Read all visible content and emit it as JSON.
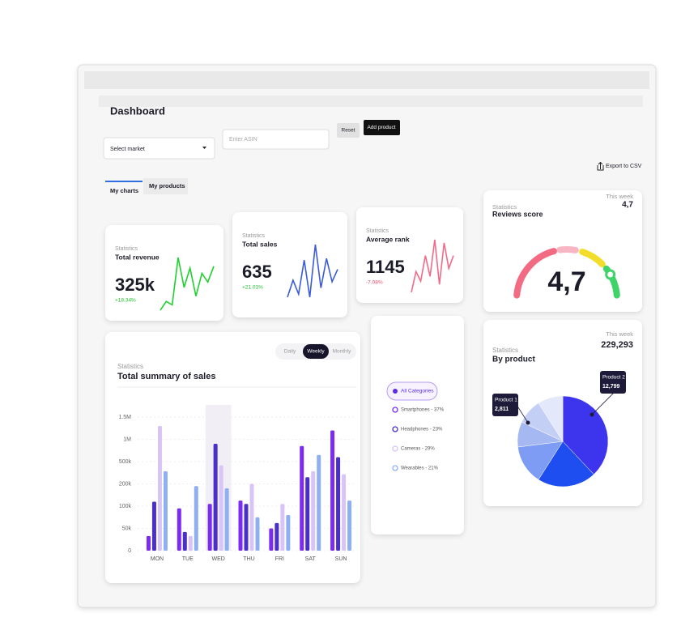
{
  "header": {
    "title": "Dashboard"
  },
  "controls": {
    "market_select": "Select market",
    "asin_placeholder": "Enter ASIN",
    "reset": "Reset",
    "add_product": "Add product",
    "export": "Export to CSV"
  },
  "tabs": [
    "My charts",
    "My products"
  ],
  "kpis": [
    {
      "label": "Statistics",
      "title": "Total revenue",
      "value": "325k",
      "change": "+18.34%",
      "change_color": "#19c22b",
      "color": "#1ed12e",
      "trend": [
        2,
        12,
        8,
        62,
        28,
        50,
        18,
        44,
        34,
        52
      ]
    },
    {
      "label": "Statistics",
      "title": "Total  sales",
      "value": "635",
      "change": "+21.01%",
      "change_color": "#19c22b",
      "color": "#3b5bdb",
      "trend": [
        10,
        32,
        14,
        58,
        10,
        78,
        22,
        60,
        30,
        46
      ]
    },
    {
      "label": "Statistics",
      "title": "Average rank",
      "value": "1145",
      "change": "-7.08%",
      "change_color": "#f0506e",
      "color": "#f06b8a",
      "trend": [
        10,
        36,
        24,
        56,
        30,
        76,
        20,
        72,
        40,
        56
      ]
    }
  ],
  "reviews": {
    "label": "Statistics",
    "title": "Reviews score",
    "period": "This week",
    "score": "4,7"
  },
  "chart_data": [
    {
      "type": "bar",
      "subtitle": "Statistics",
      "title": "Total summary of sales",
      "toggles": [
        "Daily",
        "Weekly",
        "Monthly"
      ],
      "selected_toggle": 1,
      "all_categories": "All Categories",
      "highlight": 2,
      "categories": [
        "MON",
        "TUE",
        "WED",
        "THU",
        "FRI",
        "SAT",
        "SUN"
      ],
      "ylim": [
        0,
        1500000
      ],
      "yticks": [
        0,
        {
          "value": 50000,
          "label": "50k"
        },
        {
          "value": 100000,
          "label": "100k"
        },
        {
          "value": 200000,
          "label": "200k"
        },
        {
          "value": 500000,
          "label": "500k"
        },
        {
          "value": 1000000,
          "label": "1M"
        },
        {
          "value": 1500000,
          "label": "1.5M"
        }
      ],
      "series": [
        {
          "name": "Smartphones - 37%",
          "color": "#7b2cf0",
          "values": [
            33000,
            95000,
            110000,
            125000,
            50000,
            850000,
            1200000
          ]
        },
        {
          "name": "Headphones - 23%",
          "color": "#4b2fc9",
          "values": [
            120000,
            42000,
            900000,
            110000,
            62000,
            290000,
            600000
          ]
        },
        {
          "name": "Cameras - 29%",
          "color": "#d8c4f7",
          "values": [
            1300000,
            33000,
            450000,
            200000,
            110000,
            370000,
            330000
          ]
        },
        {
          "name": "Wearables - 21%",
          "color": "#8fb0f0",
          "values": [
            370000,
            190000,
            180000,
            75000,
            80000,
            650000,
            125000
          ]
        }
      ]
    },
    {
      "type": "pie",
      "subtitle": "Statistics",
      "title": "By product",
      "period": "This week",
      "total": "229,293",
      "values": [
        38,
        21,
        14,
        9,
        9,
        9
      ],
      "colors": [
        "#3d35ee",
        "#1f4ef0",
        "#7e9cf3",
        "#a6b8f2",
        "#c4cff6",
        "#e3e8fb"
      ],
      "annotations": [
        {
          "name": "Product 1",
          "value": "2,811"
        },
        {
          "name": "Product 2",
          "value": "12,799"
        }
      ]
    }
  ]
}
